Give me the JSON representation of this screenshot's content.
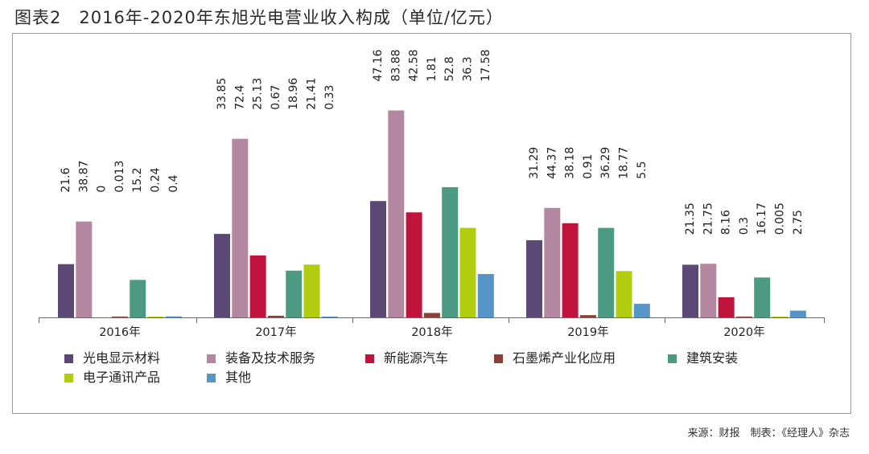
{
  "title": "图表2　2016年-2020年东旭光电营业收入构成（单位/亿元）",
  "source": "来源：财报　制表：《经理人》杂志",
  "chart_data": {
    "type": "bar",
    "title": "图表2　2016年-2020年东旭光电营业收入构成（单位/亿元）",
    "xlabel": "",
    "ylabel": "",
    "unit": "亿元",
    "categories": [
      "2016年",
      "2017年",
      "2018年",
      "2019年",
      "2020年"
    ],
    "series": [
      {
        "name": "光电显示材料",
        "color": "#5b4874",
        "values": [
          21.6,
          33.85,
          47.16,
          31.29,
          21.35
        ],
        "labels": [
          "21.6",
          "33.85",
          "47.16",
          "31.29",
          "21.35"
        ]
      },
      {
        "name": "装备及技术服务",
        "color": "#b3879f",
        "values": [
          38.87,
          72.4,
          83.88,
          44.37,
          21.75
        ],
        "labels": [
          "38.87",
          "72.4",
          "83.88",
          "44.37",
          "21.75"
        ]
      },
      {
        "name": "新能源汽车",
        "color": "#c0143c",
        "values": [
          0,
          25.13,
          42.58,
          38.18,
          8.16
        ],
        "labels": [
          "0",
          "25.13",
          "42.58",
          "38.18",
          "8.16"
        ]
      },
      {
        "name": "石墨烯产业化应用",
        "color": "#8b3f36",
        "values": [
          0.013,
          0.67,
          1.81,
          0.91,
          0.3
        ],
        "labels": [
          "0.013",
          "0.67",
          "1.81",
          "0.91",
          "0.3"
        ]
      },
      {
        "name": "建筑安装",
        "color": "#4d9a82",
        "values": [
          15.2,
          18.96,
          52.8,
          36.29,
          16.17
        ],
        "labels": [
          "15.2",
          "18.96",
          "52.8",
          "36.29",
          "16.17"
        ]
      },
      {
        "name": "电子通讯产品",
        "color": "#b2cc0f",
        "values": [
          0.24,
          21.41,
          36.3,
          18.77,
          0.005
        ],
        "labels": [
          "0.24",
          "21.41",
          "36.3",
          "18.77",
          "0.005"
        ]
      },
      {
        "name": "其他",
        "color": "#5595c8",
        "values": [
          0.4,
          0.33,
          17.58,
          5.5,
          2.75
        ],
        "labels": [
          "0.4",
          "0.33",
          "17.58",
          "5.5",
          "2.75"
        ]
      }
    ],
    "ylim": [
      0,
      90
    ],
    "grid": false,
    "legend_position": "bottom"
  }
}
